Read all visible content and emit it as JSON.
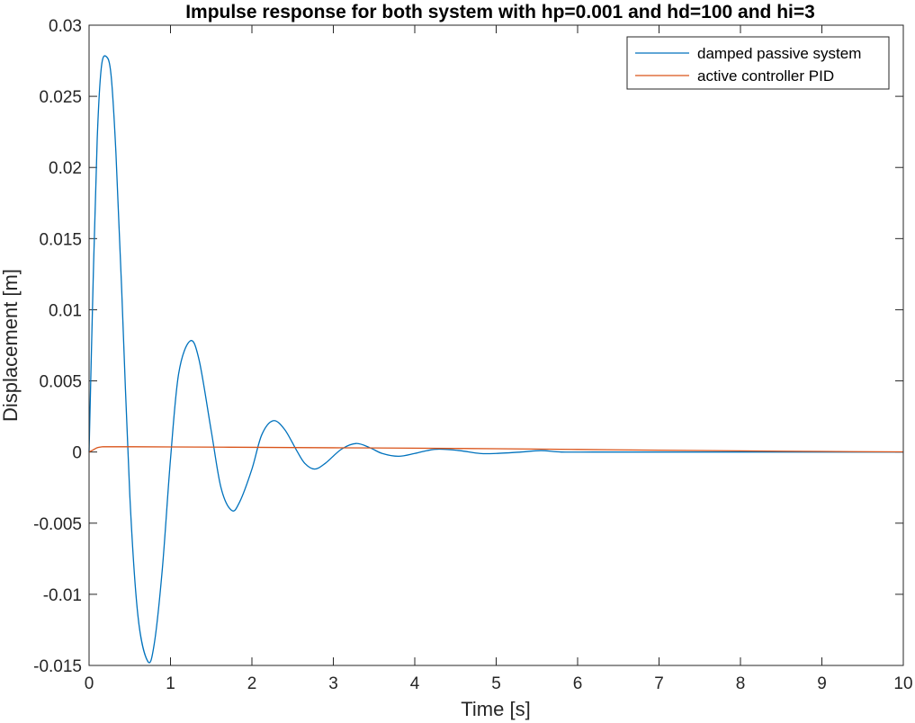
{
  "chart_data": {
    "type": "line",
    "title": "Impulse response for both system with hp=0.001 and hd=100 and hi=3",
    "xlabel": "Time [s]",
    "ylabel": "Displacement [m]",
    "xlim": [
      0,
      10
    ],
    "ylim": [
      -0.015,
      0.03
    ],
    "x_ticks": [
      0,
      1,
      2,
      3,
      4,
      5,
      6,
      7,
      8,
      9,
      10
    ],
    "x_tick_labels": [
      "0",
      "1",
      "2",
      "3",
      "4",
      "5",
      "6",
      "7",
      "8",
      "9",
      "10"
    ],
    "y_ticks": [
      -0.015,
      -0.01,
      -0.005,
      0,
      0.005,
      0.01,
      0.015,
      0.02,
      0.025,
      0.03
    ],
    "y_tick_labels": [
      "-0.015",
      "-0.01",
      "-0.005",
      "0",
      "0.005",
      "0.01",
      "0.015",
      "0.02",
      "0.025",
      "0.03"
    ],
    "grid": false,
    "legend_position": "top-right",
    "series": [
      {
        "name": "damped passive system",
        "color": "#0072BD",
        "x": [
          0,
          0.05,
          0.1,
          0.15,
          0.21,
          0.27,
          0.33,
          0.4,
          0.5,
          0.6,
          0.72,
          0.8,
          0.9,
          1.0,
          1.1,
          1.24,
          1.35,
          1.5,
          1.62,
          1.75,
          1.85,
          2.0,
          2.12,
          2.26,
          2.4,
          2.55,
          2.65,
          2.77,
          2.9,
          3.1,
          3.28,
          3.45,
          3.6,
          3.8,
          4.0,
          4.15,
          4.3,
          4.55,
          4.8,
          5.0,
          5.3,
          5.55,
          5.8,
          6.2,
          6.8,
          7.5,
          8.5,
          10.0
        ],
        "y": [
          0,
          0.012,
          0.022,
          0.027,
          0.0278,
          0.0265,
          0.021,
          0.0115,
          -0.003,
          -0.0115,
          -0.0147,
          -0.0135,
          -0.0082,
          -0.0005,
          0.0055,
          0.0078,
          0.0065,
          0.0015,
          -0.0025,
          -0.0041,
          -0.0035,
          -0.0012,
          0.0012,
          0.0022,
          0.0016,
          0.0001,
          -0.0008,
          -0.0012,
          -0.0008,
          0.0002,
          0.0006,
          0.0003,
          -0.0001,
          -0.0003,
          -0.0001,
          0.0001,
          0.0002,
          0.0001,
          -0.0001,
          -0.0001,
          0.0,
          0.0001,
          0.0,
          0.0,
          0.0,
          0.0,
          0.0,
          0.0
        ]
      },
      {
        "name": "active controller PID",
        "color": "#D95319",
        "x": [
          0,
          0.05,
          0.1,
          0.15,
          0.2,
          0.5,
          1,
          2,
          3,
          4,
          5,
          6,
          7,
          8,
          9,
          10
        ],
        "y": [
          0,
          0.00015,
          0.0003,
          0.00036,
          0.00037,
          0.00037,
          0.00036,
          0.00033,
          0.0003,
          0.00027,
          0.00023,
          0.00018,
          0.00013,
          8e-05,
          4e-05,
          1e-05
        ]
      }
    ]
  }
}
